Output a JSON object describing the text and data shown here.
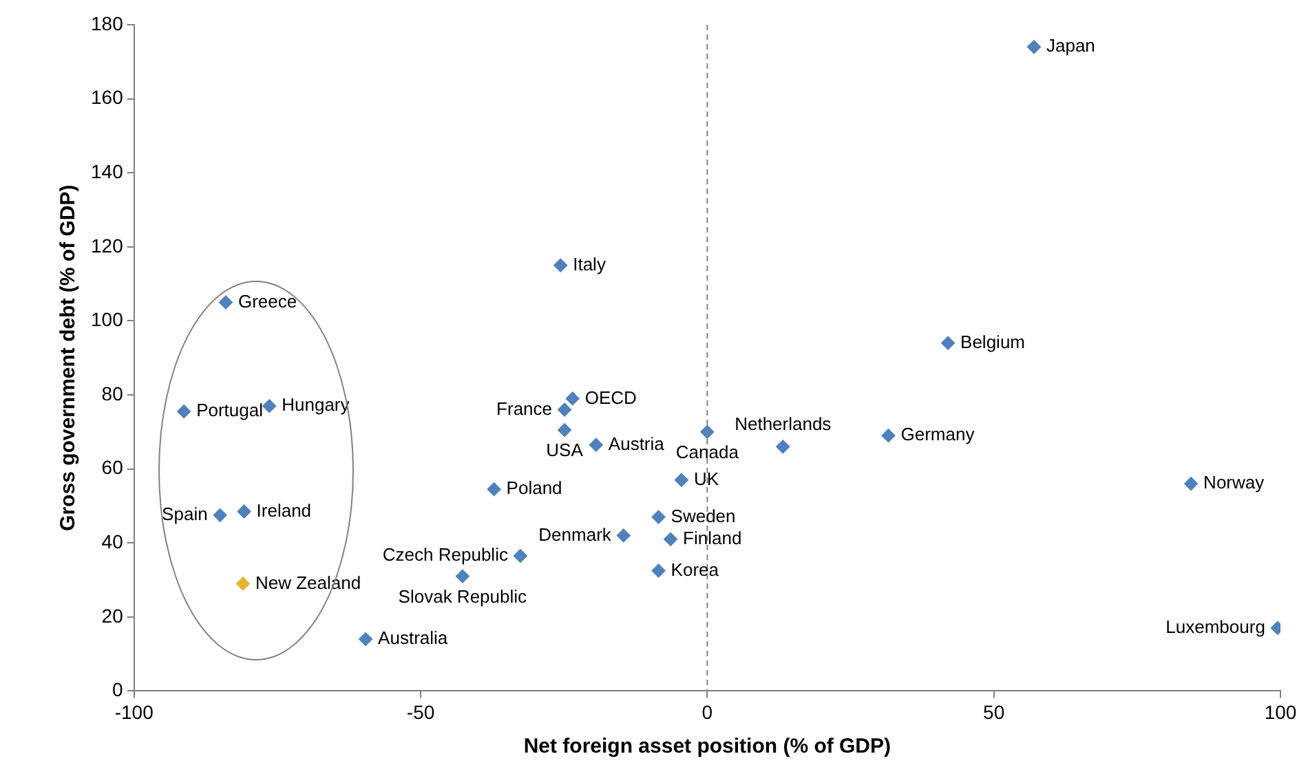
{
  "chart_data": {
    "type": "scatter",
    "xlabel": "Net foreign asset position (% of GDP)",
    "ylabel": "Gross government debt (% of GDP)",
    "xlim": [
      -100,
      100
    ],
    "xticks": [
      -100,
      -50,
      0,
      50,
      100
    ],
    "ylim": [
      0,
      180
    ],
    "yticks": [
      0,
      20,
      40,
      60,
      80,
      100,
      120,
      140,
      160,
      180
    ],
    "marker": "diamond",
    "series": [
      {
        "x": [
          57,
          -25.6,
          42,
          -84,
          -91.3,
          -76.4,
          -24.9,
          -23.5,
          -24.9,
          -19.4,
          0,
          13.2,
          31.6,
          84.4,
          -37.2,
          -4.5,
          -8.5,
          -14.6,
          -6.4,
          -8.5,
          -32.6,
          -42.7,
          -59.6,
          99.5,
          -85,
          -80.8,
          -81
        ],
        "values": [
          174,
          115,
          94,
          105,
          75.5,
          77,
          76,
          79,
          70.5,
          66.5,
          70,
          66,
          69,
          56,
          54.5,
          57,
          47,
          42,
          41,
          32.5,
          36.5,
          31,
          14,
          17,
          47.5,
          48.5,
          29
        ],
        "colors": [
          "#4f81bd",
          "#4f81bd",
          "#4f81bd",
          "#4f81bd",
          "#4f81bd",
          "#4f81bd",
          "#4f81bd",
          "#4f81bd",
          "#4f81bd",
          "#4f81bd",
          "#4f81bd",
          "#4f81bd",
          "#4f81bd",
          "#4f81bd",
          "#4f81bd",
          "#4f81bd",
          "#4f81bd",
          "#4f81bd",
          "#4f81bd",
          "#4f81bd",
          "#4f81bd",
          "#4f81bd",
          "#4f81bd",
          "#4f81bd",
          "#4f81bd",
          "#4f81bd",
          "#e6b432"
        ]
      }
    ],
    "annotations": [
      {
        "text": "Japan",
        "x": 57,
        "y": 174
      },
      {
        "text": "Italy",
        "x": -25.6,
        "y": 115
      },
      {
        "text": "Belgium",
        "x": 42,
        "y": 94
      },
      {
        "text": "Greece",
        "x": -84,
        "y": 105
      },
      {
        "text": "Portugal",
        "x": -91.3,
        "y": 75.5
      },
      {
        "text": "Hungary",
        "x": -76.4,
        "y": 77
      },
      {
        "text": "France",
        "x": -24.9,
        "y": 76
      },
      {
        "text": "OECD",
        "x": -23.5,
        "y": 79
      },
      {
        "text": "USA",
        "x": -24.9,
        "y": 70.5
      },
      {
        "text": "Austria",
        "x": -19.4,
        "y": 66.5
      },
      {
        "text": "Canada",
        "x": 0,
        "y": 70
      },
      {
        "text": "Netherlands",
        "x": 13.2,
        "y": 66
      },
      {
        "text": "Germany",
        "x": 31.6,
        "y": 69
      },
      {
        "text": "Norway",
        "x": 84.4,
        "y": 56
      },
      {
        "text": "Poland",
        "x": -37.2,
        "y": 54.5
      },
      {
        "text": "UK",
        "x": -4.5,
        "y": 57
      },
      {
        "text": "Sweden",
        "x": -8.5,
        "y": 47
      },
      {
        "text": "Denmark",
        "x": -14.6,
        "y": 42
      },
      {
        "text": "Finland",
        "x": -6.4,
        "y": 41
      },
      {
        "text": "Korea",
        "x": -8.5,
        "y": 32.5
      },
      {
        "text": "Czech Republic",
        "x": -32.6,
        "y": 36.5
      },
      {
        "text": "Slovak Republic",
        "x": -42.7,
        "y": 31
      },
      {
        "text": "Australia",
        "x": -59.6,
        "y": 14
      },
      {
        "text": "Luxembourg",
        "x": 99.5,
        "y": 17
      },
      {
        "text": "Spain",
        "x": -85,
        "y": 47.5
      },
      {
        "text": "Ireland",
        "x": -80.8,
        "y": 48.5
      },
      {
        "text": "New Zealand",
        "x": -81,
        "y": 29
      }
    ],
    "ref_lines": [
      {
        "axis": "x",
        "value": 0,
        "line_style": "dashed",
        "color": "#808080"
      }
    ]
  }
}
